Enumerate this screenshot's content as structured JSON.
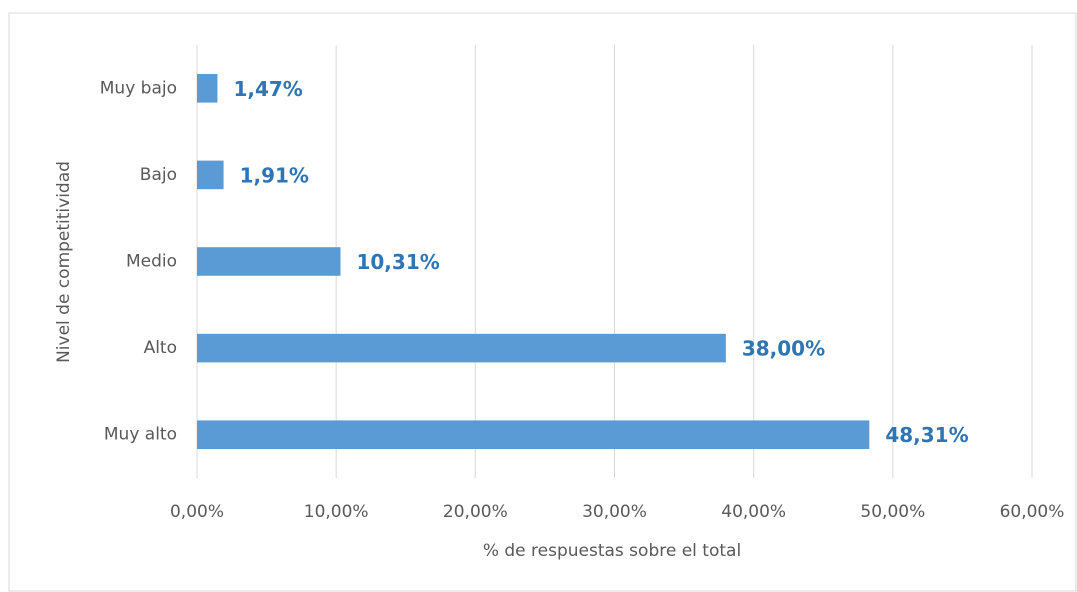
{
  "chart_data": {
    "type": "bar",
    "orientation": "horizontal",
    "x_label": "% de respuestas sobre el total",
    "y_label": "Nivel de competitividad",
    "categories": [
      "Muy bajo",
      "Bajo",
      "Medio",
      "Alto",
      "Muy alto"
    ],
    "values": [
      1.47,
      1.91,
      10.31,
      38.0,
      48.31
    ],
    "value_labels": [
      "1,47%",
      "1,91%",
      "10,31%",
      "38,00%",
      "48,31%"
    ],
    "color": "#5b9bd5",
    "label_color": "#2e75b6",
    "xlim": [
      0,
      60
    ],
    "xticks": [
      {
        "value": 0,
        "label": "0,00%"
      },
      {
        "value": 10,
        "label": "10,00%"
      },
      {
        "value": 20,
        "label": "20,00%"
      },
      {
        "value": 30,
        "label": "30,00%"
      },
      {
        "value": 40,
        "label": "40,00%"
      },
      {
        "value": 50,
        "label": "50,00%"
      },
      {
        "value": 60,
        "label": "60,00%"
      }
    ],
    "grid": true
  }
}
